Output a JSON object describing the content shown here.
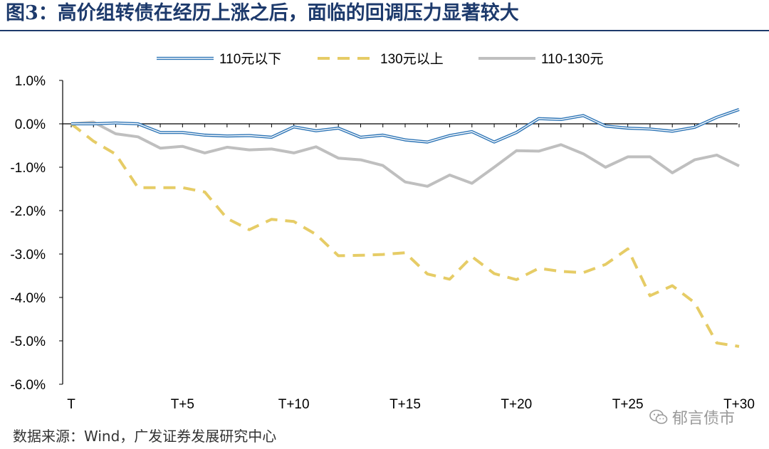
{
  "figure": {
    "title": "图3：高价组转债在经历上涨之后，面临的回调压力显著较大",
    "source": "数据来源：Wind，广发证券发展研究中心",
    "watermark": "郁言债市",
    "watermark_icon": "wechat-icon"
  },
  "chart_data": {
    "type": "line",
    "x": [
      "T",
      "T+1",
      "T+2",
      "T+3",
      "T+4",
      "T+5",
      "T+6",
      "T+7",
      "T+8",
      "T+9",
      "T+10",
      "T+11",
      "T+12",
      "T+13",
      "T+14",
      "T+15",
      "T+16",
      "T+17",
      "T+18",
      "T+19",
      "T+20",
      "T+21",
      "T+22",
      "T+23",
      "T+24",
      "T+25",
      "T+26",
      "T+27",
      "T+28",
      "T+29",
      "T+30"
    ],
    "x_tick_labels": [
      "T",
      "T+5",
      "T+10",
      "T+15",
      "T+20",
      "T+25",
      "T+30"
    ],
    "y_tick_labels": [
      "1.0%",
      "0.0%",
      "-1.0%",
      "-2.0%",
      "-3.0%",
      "-4.0%",
      "-5.0%",
      "-6.0%"
    ],
    "ylim": [
      -6.0,
      1.0
    ],
    "y_unit": "%",
    "grid": false,
    "legend_position": "top",
    "xlabel": "",
    "ylabel": "",
    "series": [
      {
        "name": "110元以下",
        "style": "double-line",
        "color": "#2e75b6",
        "values": [
          0.0,
          0.0,
          0.02,
          0.0,
          -0.2,
          -0.2,
          -0.26,
          -0.28,
          -0.27,
          -0.31,
          -0.07,
          -0.16,
          -0.1,
          -0.31,
          -0.26,
          -0.37,
          -0.42,
          -0.27,
          -0.18,
          -0.42,
          -0.2,
          0.12,
          0.1,
          0.19,
          -0.05,
          -0.1,
          -0.12,
          -0.17,
          -0.08,
          0.15,
          0.33
        ]
      },
      {
        "name": "130元以上",
        "style": "dashed",
        "color": "#e6cc66",
        "values": [
          0.0,
          -0.4,
          -0.7,
          -1.47,
          -1.47,
          -1.47,
          -1.57,
          -2.18,
          -2.44,
          -2.2,
          -2.25,
          -2.55,
          -3.04,
          -3.03,
          -3.01,
          -2.97,
          -3.46,
          -3.58,
          -3.06,
          -3.45,
          -3.59,
          -3.33,
          -3.4,
          -3.43,
          -3.24,
          -2.88,
          -3.96,
          -3.73,
          -4.12,
          -5.05,
          -5.13
        ]
      },
      {
        "name": "110-130元",
        "style": "solid",
        "color": "#bfbfbf",
        "values": [
          0.0,
          0.04,
          -0.23,
          -0.3,
          -0.56,
          -0.52,
          -0.67,
          -0.54,
          -0.6,
          -0.58,
          -0.67,
          -0.53,
          -0.79,
          -0.83,
          -0.96,
          -1.34,
          -1.44,
          -1.18,
          -1.37,
          -1.0,
          -0.62,
          -0.63,
          -0.48,
          -0.69,
          -1.0,
          -0.76,
          -0.76,
          -1.13,
          -0.83,
          -0.72,
          -0.97
        ]
      }
    ]
  }
}
